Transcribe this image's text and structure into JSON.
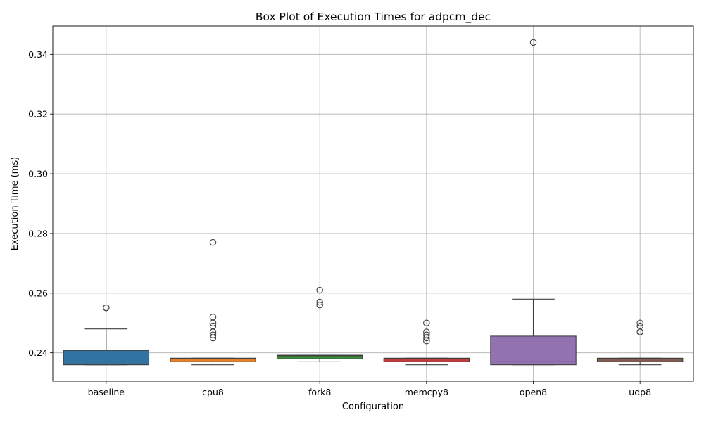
{
  "chart_data": {
    "type": "box",
    "title": "Box Plot of Execution Times for adpcm_dec",
    "xlabel": "Configuration",
    "ylabel": "Execution Time (ms)",
    "ylim": [
      0.2305,
      0.3495
    ],
    "yticks": [
      0.24,
      0.26,
      0.28,
      0.3,
      0.32,
      0.34
    ],
    "ytick_labels": [
      "0.24",
      "0.26",
      "0.28",
      "0.30",
      "0.32",
      "0.34"
    ],
    "grid": true,
    "categories": [
      "baseline",
      "cpu8",
      "fork8",
      "memcpy8",
      "open8",
      "udp8"
    ],
    "boxes": [
      {
        "name": "baseline",
        "color": "#3274a1",
        "whislo": 0.236,
        "q1": 0.236,
        "med": 0.2362,
        "q3": 0.2408,
        "whishi": 0.248,
        "fliers": [
          0.2551,
          0.2551
        ]
      },
      {
        "name": "cpu8",
        "color": "#e1812c",
        "whislo": 0.236,
        "q1": 0.237,
        "med": 0.238,
        "q3": 0.2382,
        "whishi": 0.2382,
        "fliers": [
          0.277,
          0.252,
          0.25,
          0.249,
          0.247,
          0.246,
          0.245
        ]
      },
      {
        "name": "fork8",
        "color": "#3a923a",
        "whislo": 0.237,
        "q1": 0.238,
        "med": 0.239,
        "q3": 0.2392,
        "whishi": 0.2392,
        "fliers": [
          0.261,
          0.257,
          0.256
        ]
      },
      {
        "name": "memcpy8",
        "color": "#c03d3e",
        "whislo": 0.236,
        "q1": 0.237,
        "med": 0.238,
        "q3": 0.2382,
        "whishi": 0.2382,
        "fliers": [
          0.25,
          0.247,
          0.246,
          0.245,
          0.244
        ]
      },
      {
        "name": "open8",
        "color": "#9372b2",
        "whislo": 0.236,
        "q1": 0.236,
        "med": 0.237,
        "q3": 0.2456,
        "whishi": 0.258,
        "fliers": [
          0.344
        ]
      },
      {
        "name": "udp8",
        "color": "#845b53",
        "whislo": 0.236,
        "q1": 0.237,
        "med": 0.238,
        "q3": 0.2382,
        "whishi": 0.2382,
        "fliers": [
          0.25,
          0.249,
          0.247,
          0.247
        ]
      }
    ]
  }
}
